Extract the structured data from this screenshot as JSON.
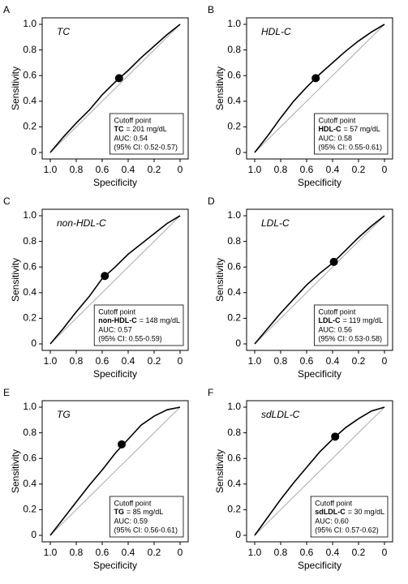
{
  "chart_data": [
    {
      "type": "line",
      "panel": "A",
      "title": "TC",
      "xlabel": "Specificity",
      "ylabel": "Sensitivity",
      "xlim": [
        1,
        0
      ],
      "ylim": [
        0,
        1
      ],
      "xticks": [
        {
          "value": 1,
          "label": "1.0"
        },
        0.8,
        0.6,
        0.4,
        0.2,
        0
      ],
      "yticks": [
        0,
        0.2,
        0.4,
        0.6,
        0.8,
        {
          "value": 1,
          "label": "1.0"
        }
      ],
      "series": [
        {
          "color": "#000000",
          "x": [
            1,
            0.9,
            0.8,
            0.7,
            0.6,
            0.5,
            0.4,
            0.3,
            0.2,
            0.1,
            0
          ],
          "values": [
            0,
            0.12,
            0.23,
            0.33,
            0.45,
            0.55,
            0.64,
            0.74,
            0.83,
            0.92,
            1
          ]
        }
      ],
      "cutoff": {
        "x": 0.47,
        "y": 0.58
      },
      "annotation": {
        "heading": "Cutoff point",
        "label": "TC",
        "cutoff": "= 201 mg/dL",
        "auc": "AUC: 0.54",
        "ci": "(95% CI: 0.52-0.57)"
      }
    },
    {
      "type": "line",
      "panel": "B",
      "title": "HDL-C",
      "xlabel": "Specificity",
      "ylabel": "Sensitivity",
      "xlim": [
        1,
        0
      ],
      "ylim": [
        0,
        1
      ],
      "xticks": [
        {
          "value": 1,
          "label": "1.0"
        },
        0.8,
        0.6,
        0.4,
        0.2,
        0
      ],
      "yticks": [
        0,
        0.2,
        0.4,
        0.6,
        0.8,
        {
          "value": 1,
          "label": "1.0"
        }
      ],
      "series": [
        {
          "color": "#000000",
          "x": [
            1,
            0.9,
            0.8,
            0.7,
            0.6,
            0.5,
            0.4,
            0.3,
            0.2,
            0.1,
            0
          ],
          "values": [
            0,
            0.13,
            0.27,
            0.4,
            0.51,
            0.61,
            0.7,
            0.79,
            0.87,
            0.94,
            1
          ]
        }
      ],
      "cutoff": {
        "x": 0.53,
        "y": 0.58
      },
      "annotation": {
        "heading": "Cutoff point",
        "label": "HDL-C",
        "cutoff": "= 57 mg/dL",
        "auc": "AUC: 0.58",
        "ci": "(95% CI: 0.55-0.61)"
      }
    },
    {
      "type": "line",
      "panel": "C",
      "title": "non-HDL-C",
      "xlabel": "Specificity",
      "ylabel": "Sensitivity",
      "xlim": [
        1,
        0
      ],
      "ylim": [
        0,
        1
      ],
      "xticks": [
        {
          "value": 1,
          "label": "1.0"
        },
        0.8,
        0.6,
        0.4,
        0.2,
        0
      ],
      "yticks": [
        0,
        0.2,
        0.4,
        0.6,
        0.8,
        {
          "value": 1,
          "label": "1.0"
        }
      ],
      "series": [
        {
          "color": "#000000",
          "x": [
            1,
            0.9,
            0.8,
            0.7,
            0.6,
            0.5,
            0.4,
            0.3,
            0.2,
            0.1,
            0
          ],
          "values": [
            0,
            0.12,
            0.25,
            0.37,
            0.51,
            0.6,
            0.7,
            0.78,
            0.86,
            0.94,
            1
          ]
        }
      ],
      "cutoff": {
        "x": 0.58,
        "y": 0.53
      },
      "annotation": {
        "heading": "Cutoff point",
        "label": "non-HDL-C",
        "cutoff": "= 148 mg/dL",
        "auc": "AUC: 0.57",
        "ci": "(95% CI: 0.55-0.59)"
      }
    },
    {
      "type": "line",
      "panel": "D",
      "title": "LDL-C",
      "xlabel": "Specificity",
      "ylabel": "Sensitivity",
      "xlim": [
        1,
        0
      ],
      "ylim": [
        0,
        1
      ],
      "xticks": [
        {
          "value": 1,
          "label": "1.0"
        },
        0.8,
        0.6,
        0.4,
        0.2,
        0
      ],
      "yticks": [
        0,
        0.2,
        0.4,
        0.6,
        0.8,
        {
          "value": 1,
          "label": "1.0"
        }
      ],
      "series": [
        {
          "color": "#000000",
          "x": [
            1,
            0.9,
            0.8,
            0.7,
            0.6,
            0.5,
            0.4,
            0.3,
            0.2,
            0.1,
            0
          ],
          "values": [
            0,
            0.12,
            0.24,
            0.35,
            0.46,
            0.55,
            0.63,
            0.73,
            0.83,
            0.92,
            1
          ]
        }
      ],
      "cutoff": {
        "x": 0.39,
        "y": 0.64
      },
      "annotation": {
        "heading": "Cutoff point",
        "label": "LDL-C",
        "cutoff": "= 119 mg/dL",
        "auc": "AUC: 0.56",
        "ci": "(95% CI: 0.53-0.58)"
      }
    },
    {
      "type": "line",
      "panel": "E",
      "title": "TG",
      "xlabel": "Specificity",
      "ylabel": "Sensitivity",
      "xlim": [
        1,
        0
      ],
      "ylim": [
        0,
        1
      ],
      "xticks": [
        {
          "value": 1,
          "label": "1.0"
        },
        0.8,
        0.6,
        0.4,
        0.2,
        0
      ],
      "yticks": [
        0,
        0.2,
        0.4,
        0.6,
        0.8,
        {
          "value": 1,
          "label": "1.0"
        }
      ],
      "series": [
        {
          "color": "#000000",
          "x": [
            1,
            0.9,
            0.8,
            0.7,
            0.6,
            0.5,
            0.4,
            0.3,
            0.2,
            0.1,
            0
          ],
          "values": [
            0,
            0.13,
            0.26,
            0.39,
            0.51,
            0.64,
            0.75,
            0.86,
            0.93,
            0.98,
            1
          ]
        }
      ],
      "cutoff": {
        "x": 0.45,
        "y": 0.71
      },
      "annotation": {
        "heading": "Cutoff point",
        "label": "TG",
        "cutoff": "= 85 mg/dL",
        "auc": "AUC: 0.59",
        "ci": "(95% CI: 0.56-0.61)"
      }
    },
    {
      "type": "line",
      "panel": "F",
      "title": "sdLDL-C",
      "xlabel": "Specificity",
      "ylabel": "Sensitivity",
      "xlim": [
        1,
        0
      ],
      "ylim": [
        0,
        1
      ],
      "xticks": [
        {
          "value": 1,
          "label": "1.0"
        },
        0.8,
        0.6,
        0.4,
        0.2,
        0
      ],
      "yticks": [
        0,
        0.2,
        0.4,
        0.6,
        0.8,
        {
          "value": 1,
          "label": "1.0"
        }
      ],
      "series": [
        {
          "color": "#000000",
          "x": [
            1,
            0.9,
            0.8,
            0.7,
            0.6,
            0.5,
            0.4,
            0.3,
            0.2,
            0.1,
            0
          ],
          "values": [
            0,
            0.14,
            0.28,
            0.41,
            0.53,
            0.65,
            0.75,
            0.84,
            0.91,
            0.97,
            1
          ]
        }
      ],
      "cutoff": {
        "x": 0.38,
        "y": 0.77
      },
      "annotation": {
        "heading": "Cutoff point",
        "label": "sdLDL-C",
        "cutoff": "= 30 mg/dL",
        "auc": "AUC: 0.60",
        "ci": "(95% CI: 0.57-0.62)"
      }
    }
  ]
}
